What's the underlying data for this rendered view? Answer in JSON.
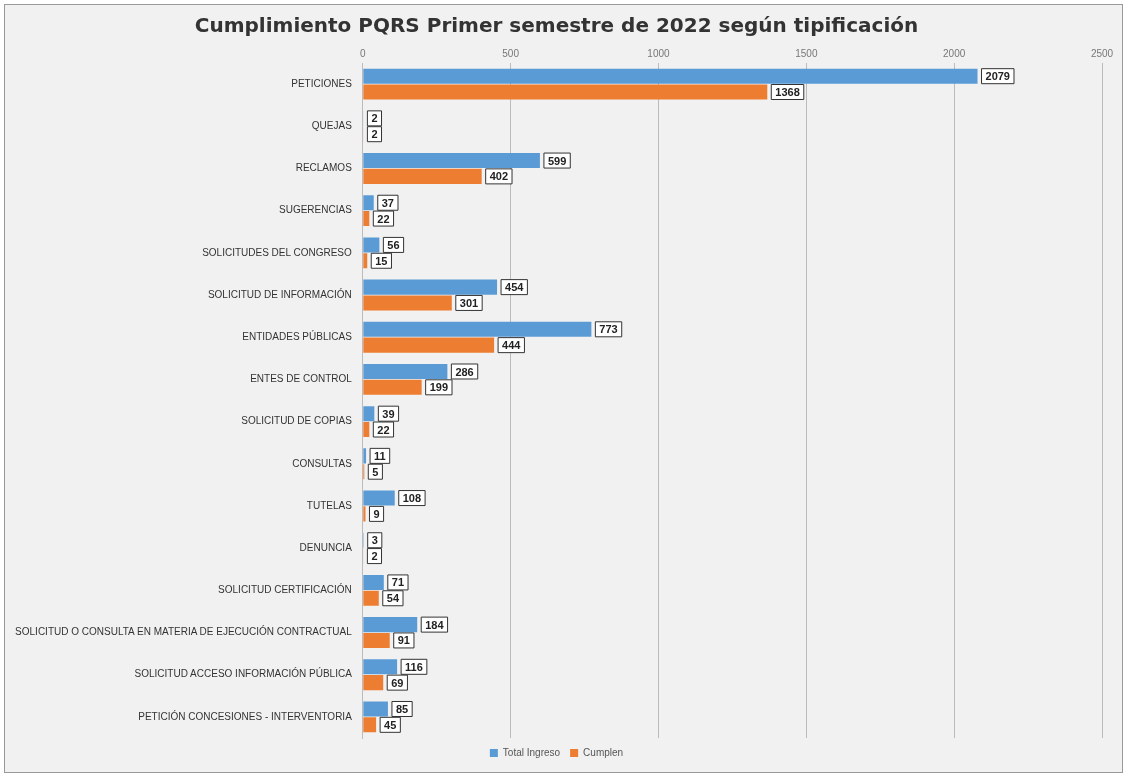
{
  "chart_data": {
    "type": "bar",
    "orientation": "horizontal",
    "title": "Cumplimiento PQRS Primer semestre de 2022 según tipificación",
    "categories": [
      "PETICIONES",
      "QUEJAS",
      "RECLAMOS",
      "SUGERENCIAS",
      "SOLICITUDES DEL CONGRESO",
      "SOLICITUD DE INFORMACIÓN",
      "ENTIDADES PÚBLICAS",
      "ENTES DE CONTROL",
      "SOLICITUD DE COPIAS",
      "CONSULTAS",
      "TUTELAS",
      "DENUNCIA",
      "SOLICITUD CERTIFICACIÓN",
      "SOLICITUD O CONSULTA EN MATERIA DE EJECUCIÓN CONTRACTUAL",
      "SOLICITUD ACCESO INFORMACIÓN PÚBLICA",
      "PETICIÓN CONCESIONES - INTERVENTORIA"
    ],
    "series": [
      {
        "name": "Total Ingreso",
        "color": "#5b9bd5",
        "values": [
          2079,
          2,
          599,
          37,
          56,
          454,
          773,
          286,
          39,
          11,
          108,
          3,
          71,
          184,
          116,
          85
        ]
      },
      {
        "name": "Cumplen",
        "color": "#ed7d31",
        "values": [
          1368,
          2,
          402,
          22,
          15,
          301,
          444,
          199,
          22,
          5,
          9,
          2,
          54,
          91,
          69,
          45
        ]
      }
    ],
    "xlim": [
      0,
      2500
    ],
    "xticks": [
      0,
      500,
      1000,
      1500,
      2000,
      2500
    ],
    "grid": "x",
    "legend": "bottom",
    "data_labels": true
  }
}
